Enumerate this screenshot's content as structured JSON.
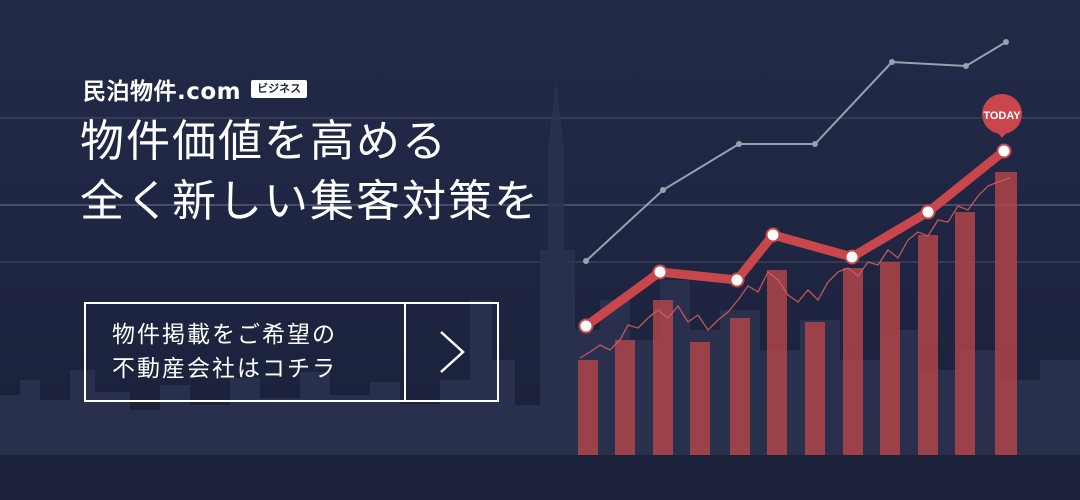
{
  "brand": {
    "name": "民泊物件.com",
    "badge": "ビジネス"
  },
  "headline": {
    "line1": "物件価値を高める",
    "line2": "全く新しい集客対策を"
  },
  "cta": {
    "line1": "物件掲載をご希望の",
    "line2": "不動産会社はコチラ"
  },
  "chart": {
    "marker_label": "TODAY"
  },
  "colors": {
    "background": "#1e2541",
    "accent_red": "#c9474c",
    "bar_red": "#b5454a",
    "gray_line": "#9aa0ad"
  }
}
